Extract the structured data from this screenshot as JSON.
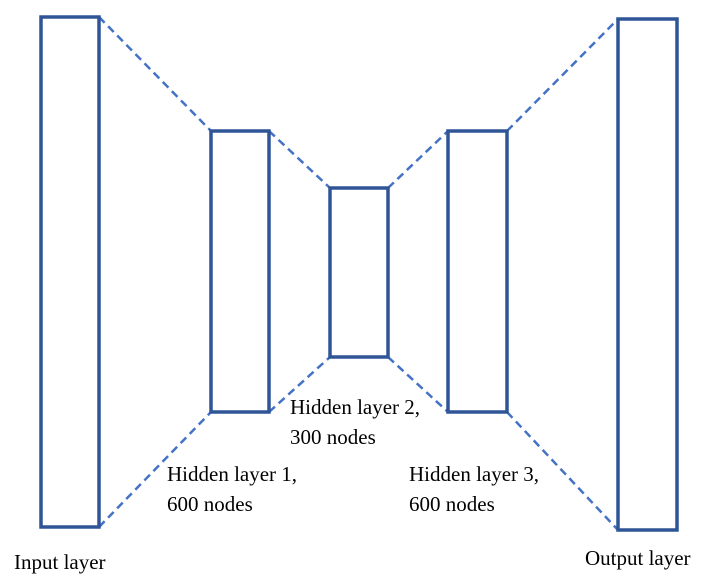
{
  "colors": {
    "layer_stroke": "#2f5597",
    "connector_stroke": "#4472c4",
    "text": "#000000",
    "background": "#ffffff"
  },
  "layers": [
    {
      "id": "input",
      "lines": [
        "Input layer"
      ]
    },
    {
      "id": "hidden1",
      "lines": [
        "Hidden layer 1,",
        "600 nodes"
      ]
    },
    {
      "id": "hidden2",
      "lines": [
        "Hidden layer 2,",
        "300 nodes"
      ]
    },
    {
      "id": "hidden3",
      "lines": [
        "Hidden layer 3,",
        "600 nodes"
      ]
    },
    {
      "id": "output",
      "lines": [
        "Output layer"
      ]
    }
  ]
}
